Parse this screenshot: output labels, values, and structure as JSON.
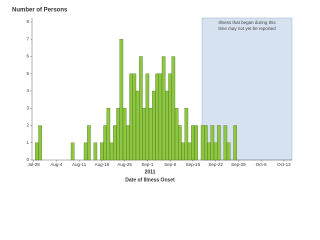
{
  "chart_data": {
    "type": "bar",
    "title": "Number of Persons",
    "x_label_year": "2011",
    "x_label": "Date of Illness Onset",
    "annotation": [
      "Illness that began during this",
      "time may not yet be reported"
    ],
    "categories": [
      "Jul-28",
      null,
      null,
      null,
      null,
      null,
      null,
      "Aug-4",
      null,
      null,
      null,
      null,
      null,
      null,
      "Aug-11",
      null,
      null,
      null,
      null,
      null,
      null,
      "Aug-18",
      null,
      null,
      null,
      null,
      null,
      null,
      "Aug-25",
      null,
      null,
      null,
      null,
      null,
      null,
      "Sep-1",
      null,
      null,
      null,
      null,
      null,
      null,
      "Sep-8",
      null,
      null,
      null,
      null,
      null,
      null,
      "Sep-15",
      null,
      null,
      null,
      null,
      null,
      null,
      "Sep-22",
      null,
      null,
      null,
      null,
      null,
      null,
      "Sep-29",
      null,
      null,
      null,
      null,
      null,
      null,
      "Oct-6",
      null,
      null,
      null,
      null,
      null,
      null,
      "Oct-13"
    ],
    "values": [
      0,
      1,
      2,
      0,
      0,
      0,
      0,
      0,
      0,
      0,
      0,
      0,
      1,
      0,
      0,
      0,
      1,
      2,
      0,
      1,
      0,
      1,
      2,
      3,
      1,
      2,
      3,
      7,
      3,
      2,
      5,
      5,
      4,
      6,
      3,
      5,
      3,
      4,
      5,
      5,
      6,
      4,
      5,
      6,
      3,
      2,
      1,
      3,
      1,
      2,
      2,
      0,
      2,
      2,
      1,
      2,
      1,
      2,
      0,
      2,
      1,
      0,
      2,
      0,
      0,
      0,
      0,
      0,
      0,
      0,
      0,
      0,
      0,
      0,
      0,
      0,
      0,
      0
    ],
    "color": "#8dc63f",
    "ylim": [
      0,
      8
    ],
    "yticks": [
      0,
      1,
      2,
      3,
      4,
      5,
      6,
      7,
      8
    ],
    "grid": false
  }
}
